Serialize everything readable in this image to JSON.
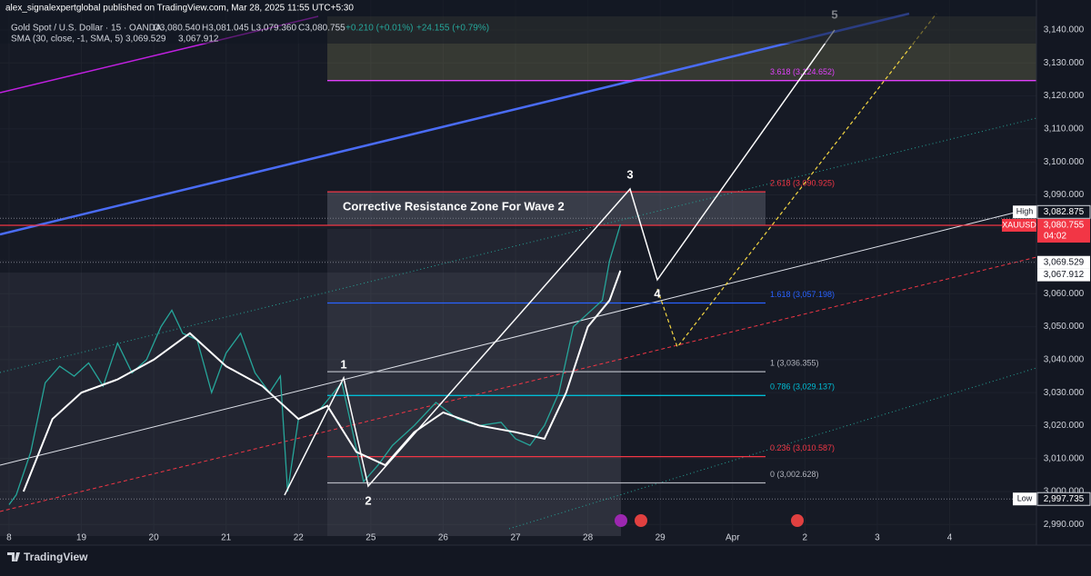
{
  "header": {
    "publisher": "alex_signalexpertglobal published on TradingView.com, Mar 28, 2025 11:55 UTC+5:30",
    "symbol": "Gold Spot / U.S. Dollar · 15 · OANDA",
    "ohlc": [
      "O3,080.540",
      "H3,081.045",
      "L3,079.360",
      "C3,080.755"
    ],
    "change": "+0.210 (+0.01%)",
    "change_day": "+24.155 (+0.79%)",
    "sma": "SMA (30, close, -1, SMA, 5)",
    "sma_values": [
      "3,069.529",
      "3,067.912"
    ]
  },
  "chart_data": {
    "type": "line",
    "categories": [
      "8",
      "19",
      "20",
      "21",
      "22",
      "25",
      "26",
      "27",
      "28",
      "29",
      "Apr",
      "2",
      "3",
      "4"
    ],
    "xlim": [
      -0.125,
      14.2
    ],
    "ylim": [
      2986.5,
      3149.1
    ],
    "yticks": [
      {
        "value": 2990,
        "label": "2,990.000"
      },
      {
        "value": 3000,
        "label": "3,000.000"
      },
      {
        "value": 3010,
        "label": "3,010.000"
      },
      {
        "value": 3020,
        "label": "3,020.000"
      },
      {
        "value": 3030,
        "label": "3,030.000"
      },
      {
        "value": 3040,
        "label": "3,040.000"
      },
      {
        "value": 3050,
        "label": "3,050.000"
      },
      {
        "value": 3060,
        "label": "3,060.000"
      },
      {
        "value": 3070,
        "label": "3,070.000"
      },
      {
        "value": 3080,
        "label": "3,080.000"
      },
      {
        "value": 3090,
        "label": "3,090.000"
      },
      {
        "value": 3100,
        "label": "3,100.000"
      },
      {
        "value": 3110,
        "label": "3,110.000"
      },
      {
        "value": 3120,
        "label": "3,120.000"
      },
      {
        "value": 3130,
        "label": "3,130.000"
      },
      {
        "value": 3140,
        "label": "3,140.000"
      }
    ],
    "grid": true,
    "series": [
      {
        "name": "XAUUSD",
        "color": "#26a69a",
        "x": [
          0,
          0.1,
          0.3,
          0.5,
          0.7,
          0.9,
          1.1,
          1.3,
          1.5,
          1.7,
          1.9,
          2.1,
          2.25,
          2.4,
          2.6,
          2.8,
          3.0,
          3.2,
          3.4,
          3.6,
          3.75,
          3.85,
          4.0,
          4.3,
          4.6,
          4.75,
          4.9,
          5.1,
          5.3,
          5.6,
          5.9,
          6.2,
          6.5,
          6.8,
          7.0,
          7.2,
          7.4,
          7.6,
          7.8,
          8.0,
          8.2,
          8.3,
          8.45
        ],
        "values": [
          2996,
          2999,
          3012,
          3033,
          3038,
          3035,
          3039,
          3032,
          3045,
          3036,
          3040,
          3050,
          3055,
          3048,
          3046,
          3030,
          3042,
          3048,
          3036,
          3030,
          3035,
          3000,
          3022,
          3025,
          3033,
          3018,
          3003,
          3008,
          3014,
          3020,
          3027,
          3022,
          3020,
          3021,
          3016,
          3014,
          3020,
          3030,
          3050,
          3054,
          3058,
          3070,
          3081
        ]
      },
      {
        "name": "SMA",
        "color": "#ffffff",
        "x": [
          0.2,
          0.6,
          1,
          1.5,
          2,
          2.5,
          3,
          3.5,
          4,
          4.4,
          4.8,
          5.2,
          5.6,
          6,
          6.5,
          7,
          7.4,
          7.7,
          8,
          8.3,
          8.45
        ],
        "values": [
          3000,
          3022,
          3030,
          3034,
          3040,
          3048,
          3038,
          3032,
          3022,
          3026,
          3012,
          3008,
          3018,
          3024,
          3020,
          3018,
          3016,
          3030,
          3050,
          3058,
          3067
        ]
      }
    ],
    "fib_levels": [
      {
        "value": 3124.652,
        "label": "3.618 (3,124.652)",
        "color": "#e040fb"
      },
      {
        "value": 3090.925,
        "label": "2.618 (3,090.925)",
        "color": "#f23645"
      },
      {
        "value": 3057.198,
        "label": "1.618 (3,057.198)",
        "color": "#2962ff"
      },
      {
        "value": 3036.355,
        "label": "1 (3,036.355)",
        "color": "#b2b5be"
      },
      {
        "value": 3029.137,
        "label": "0.786 (3,029.137)",
        "color": "#00bcd4"
      },
      {
        "value": 3010.587,
        "label": "0.236 (3,010.587)",
        "color": "#f23645"
      },
      {
        "value": 3002.628,
        "label": "0 (3,002.628)",
        "color": "#b2b5be"
      }
    ],
    "price_badges": [
      {
        "name": "High",
        "value": 3082.875,
        "label": "3,082.875"
      },
      {
        "name": "XAUUSD",
        "value": 3080.755,
        "label": "3,080.755",
        "countdown": "04:02"
      },
      {
        "value": 3069.529,
        "label": "3,069.529"
      },
      {
        "value": 3067.912,
        "label": "3,067.912"
      },
      {
        "name": "Low",
        "value": 2997.735,
        "label": "2,997.735"
      }
    ],
    "zone_label": "Corrective Resistance Zone For Wave 2",
    "wave_labels": [
      "1",
      "2",
      "3",
      "4",
      "5"
    ]
  },
  "footer": {
    "brand": "TradingView"
  }
}
